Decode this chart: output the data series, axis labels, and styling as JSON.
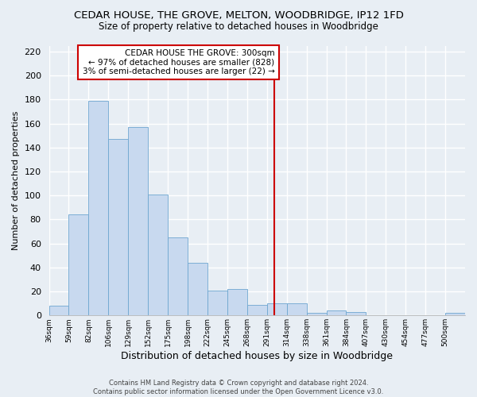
{
  "title": "CEDAR HOUSE, THE GROVE, MELTON, WOODBRIDGE, IP12 1FD",
  "subtitle": "Size of property relative to detached houses in Woodbridge",
  "xlabel": "Distribution of detached houses by size in Woodbridge",
  "ylabel": "Number of detached properties",
  "bin_labels": [
    "36sqm",
    "59sqm",
    "82sqm",
    "106sqm",
    "129sqm",
    "152sqm",
    "175sqm",
    "198sqm",
    "222sqm",
    "245sqm",
    "268sqm",
    "291sqm",
    "314sqm",
    "338sqm",
    "361sqm",
    "384sqm",
    "407sqm",
    "430sqm",
    "454sqm",
    "477sqm",
    "500sqm"
  ],
  "bar_heights": [
    8,
    84,
    179,
    147,
    157,
    101,
    65,
    44,
    21,
    22,
    9,
    10,
    10,
    2,
    4,
    3,
    0,
    0,
    0,
    0,
    2
  ],
  "bar_color": "#c8d9ef",
  "bar_edge_color": "#6ea6d0",
  "reference_line_label": "CEDAR HOUSE THE GROVE: 300sqm",
  "annotation_line1": "← 97% of detached houses are smaller (828)",
  "annotation_line2": "3% of semi-detached houses are larger (22) →",
  "annotation_box_color": "#ffffff",
  "annotation_box_edge": "#cc0000",
  "ref_line_color": "#cc0000",
  "ylim": [
    0,
    225
  ],
  "yticks": [
    0,
    20,
    40,
    60,
    80,
    100,
    120,
    140,
    160,
    180,
    200,
    220
  ],
  "footer1": "Contains HM Land Registry data © Crown copyright and database right 2024.",
  "footer2": "Contains public sector information licensed under the Open Government Licence v3.0.",
  "bg_color": "#e8eef4"
}
